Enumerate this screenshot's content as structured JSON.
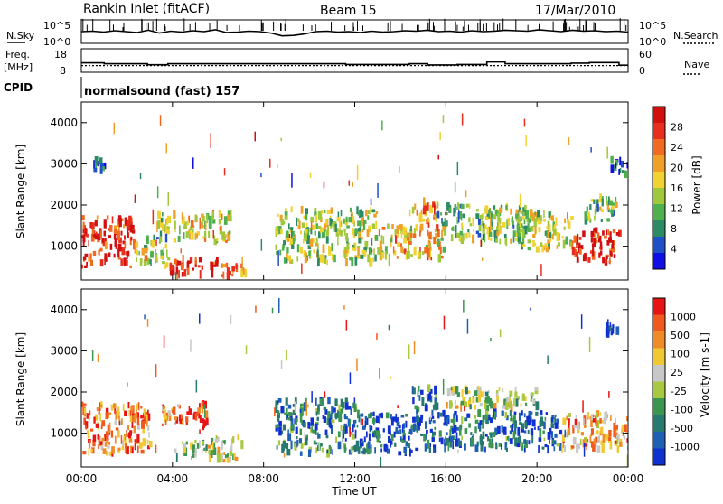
{
  "header": {
    "station": "Rankin Inlet (fitACF)",
    "beam": "Beam 15",
    "date": "17/Mar/2010"
  },
  "noise_panel": {
    "left_label": "N.Sky",
    "right_label": "N.Search",
    "left_ticks": [
      "10^5",
      "10^0"
    ],
    "right_ticks": [
      "10^5",
      "10^0"
    ],
    "sky_trace": [
      2.5,
      2.6,
      2.4,
      2.7,
      2.5,
      2.3,
      2.8,
      2.2,
      2.6,
      2.4,
      2.7,
      2.5,
      2.9,
      2.3,
      2.4,
      2.6,
      2.5,
      2.2,
      1.6,
      1.7,
      2.0,
      2.5,
      2.6,
      2.4,
      2.5,
      2.3,
      2.6,
      2.4,
      2.5,
      2.7,
      2.6,
      2.8,
      2.5,
      2.6,
      2.4,
      2.7,
      2.5,
      2.6,
      2.8,
      2.7,
      2.6,
      2.9,
      2.7,
      2.5,
      2.8,
      2.6,
      2.7,
      2.5,
      2.6,
      2.4
    ]
  },
  "freq_panel": {
    "left_label": "Freq.",
    "left_unit": "[MHz]",
    "right_label": "Nave",
    "left_ticks": [
      "18",
      "8"
    ],
    "right_ticks": [
      "60",
      "0"
    ],
    "freq_steps": [
      {
        "t": 0,
        "v": 12
      },
      {
        "t": 1.0,
        "v": 11.6
      },
      {
        "t": 2.9,
        "v": 11.2
      },
      {
        "t": 3.8,
        "v": 11.6
      },
      {
        "t": 11.6,
        "v": 11.3
      },
      {
        "t": 14.4,
        "v": 11.6
      },
      {
        "t": 15.2,
        "v": 11.1
      },
      {
        "t": 16.5,
        "v": 11.3
      },
      {
        "t": 17.8,
        "v": 12.4
      },
      {
        "t": 18.6,
        "v": 11.6
      },
      {
        "t": 21.5,
        "v": 11.9
      },
      {
        "t": 22.3,
        "v": 12.1
      },
      {
        "t": 23.6,
        "v": 11.0
      },
      {
        "t": 24,
        "v": 11.0
      }
    ],
    "nave_level": 17
  },
  "cpid": {
    "label": "CPID",
    "text": "normalsound (fast) 157"
  },
  "x_axis": {
    "label": "Time UT",
    "ticks": [
      "00:00",
      "04:00",
      "08:00",
      "12:00",
      "16:00",
      "20:00",
      "00:00"
    ],
    "range_hours": [
      0,
      24
    ]
  },
  "chart_data": [
    {
      "type": "heatmap",
      "title": "",
      "xlabel": "Time UT",
      "ylabel": "Slant Range [km]",
      "ylim": [
        180,
        4500
      ],
      "yticks": [
        "1000",
        "2000",
        "3000",
        "4000"
      ],
      "colorbar": {
        "label": "Power [dB]",
        "ticks": [
          "4",
          "8",
          "12",
          "16",
          "20",
          "24",
          "28"
        ],
        "colors": [
          "#1010e6",
          "#2050c8",
          "#2c8a64",
          "#50b050",
          "#a0c83c",
          "#f0d230",
          "#f0a028",
          "#f06a20",
          "#e62d1e",
          "#d20f0f"
        ]
      },
      "regions": [
        {
          "t0": 0.0,
          "t1": 2.3,
          "r0": 500,
          "r1": 1700,
          "level": 0.9
        },
        {
          "t0": 2.3,
          "t1": 3.0,
          "r0": 600,
          "r1": 1200,
          "level": 0.5
        },
        {
          "t0": 3.0,
          "t1": 3.8,
          "r0": 500,
          "r1": 1800,
          "level": 0.4
        },
        {
          "t0": 3.8,
          "t1": 6.0,
          "r0": 300,
          "r1": 700,
          "level": 0.9
        },
        {
          "t0": 4.0,
          "t1": 6.5,
          "r0": 1100,
          "r1": 1800,
          "level": 0.55
        },
        {
          "t0": 6.0,
          "t1": 7.2,
          "r0": 200,
          "r1": 600,
          "level": 0.7
        },
        {
          "t0": 8.5,
          "t1": 13.0,
          "r0": 600,
          "r1": 1900,
          "level": 0.45
        },
        {
          "t0": 13.0,
          "t1": 16.0,
          "r0": 700,
          "r1": 1500,
          "level": 0.6
        },
        {
          "t0": 14.5,
          "t1": 15.6,
          "r0": 1400,
          "r1": 2100,
          "level": 0.65
        },
        {
          "t0": 15.5,
          "t1": 19.5,
          "r0": 1100,
          "r1": 2000,
          "level": 0.4
        },
        {
          "t0": 19.0,
          "t1": 21.5,
          "r0": 900,
          "r1": 1800,
          "level": 0.45
        },
        {
          "t0": 21.5,
          "t1": 23.6,
          "r0": 600,
          "r1": 1400,
          "level": 0.9
        },
        {
          "t0": 22.0,
          "t1": 23.6,
          "r0": 1600,
          "r1": 2200,
          "level": 0.4
        },
        {
          "t0": 23.2,
          "t1": 24.0,
          "r0": 2700,
          "r1": 3100,
          "level": 0.15
        },
        {
          "t0": 0.5,
          "t1": 1.0,
          "r0": 2800,
          "r1": 3100,
          "level": 0.1
        }
      ]
    },
    {
      "type": "heatmap",
      "title": "",
      "xlabel": "Time UT",
      "ylabel": "Slant Range [km]",
      "ylim": [
        180,
        4500
      ],
      "yticks": [
        "1000",
        "2000",
        "3000",
        "4000"
      ],
      "colorbar": {
        "label": "Velocity [m s-1]",
        "ticks": [
          "1000",
          "500",
          "100",
          "25",
          "-25",
          "-100",
          "-500",
          "-1000"
        ],
        "colors": [
          "#1030d0",
          "#2060b4",
          "#287a6e",
          "#3c9650",
          "#a8c840",
          "#c8c8c8",
          "#f0c832",
          "#f08c28",
          "#f05a1e",
          "#e61414"
        ]
      },
      "regions": [
        {
          "t0": 0.0,
          "t1": 3.0,
          "r0": 500,
          "r1": 1700,
          "level": 0.8
        },
        {
          "t0": 3.5,
          "t1": 4.5,
          "r0": 1200,
          "r1": 1800,
          "level": 0.75
        },
        {
          "t0": 4.5,
          "t1": 5.5,
          "r0": 1100,
          "r1": 1800,
          "level": 0.95
        },
        {
          "t0": 4.0,
          "t1": 5.5,
          "r0": 400,
          "r1": 800,
          "level": 0.45
        },
        {
          "t0": 5.5,
          "t1": 7.0,
          "r0": 300,
          "r1": 900,
          "level": 0.55
        },
        {
          "t0": 8.5,
          "t1": 12.0,
          "r0": 500,
          "r1": 1800,
          "level": 0.25
        },
        {
          "t0": 12.0,
          "t1": 16.5,
          "r0": 500,
          "r1": 1500,
          "level": 0.15
        },
        {
          "t0": 14.5,
          "t1": 15.6,
          "r0": 1500,
          "r1": 2100,
          "level": 0.2
        },
        {
          "t0": 16.0,
          "t1": 20.0,
          "r0": 1600,
          "r1": 2100,
          "level": 0.5
        },
        {
          "t0": 16.5,
          "t1": 21.0,
          "r0": 600,
          "r1": 1500,
          "level": 0.2
        },
        {
          "t0": 21.0,
          "t1": 24.0,
          "r0": 600,
          "r1": 1500,
          "level": 0.7
        },
        {
          "t0": 23.0,
          "t1": 23.6,
          "r0": 3400,
          "r1": 3700,
          "level": 0.05
        }
      ]
    }
  ]
}
